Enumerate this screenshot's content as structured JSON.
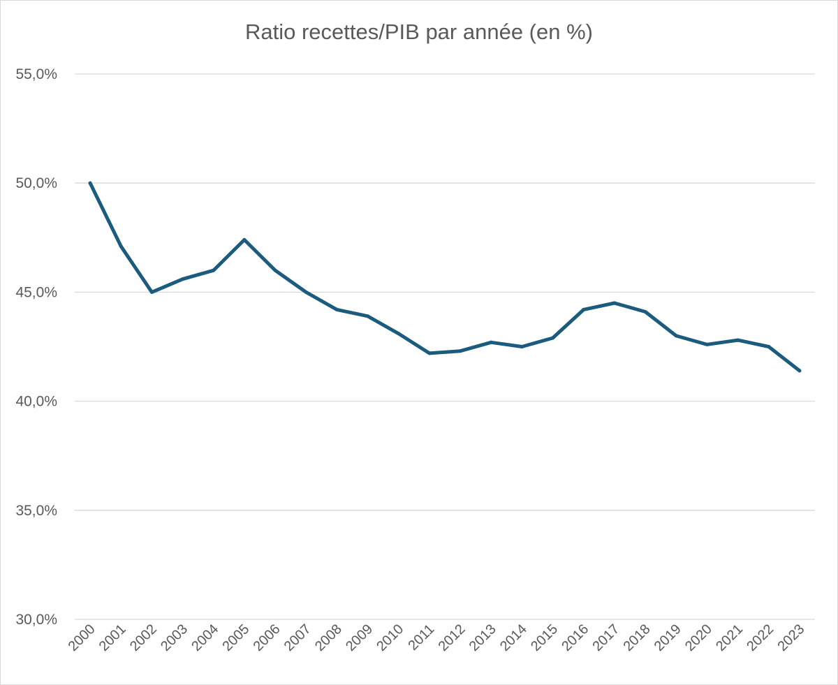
{
  "chart_data": {
    "type": "line",
    "title": "Ratio recettes/PIB par année (en %)",
    "xlabel": "",
    "ylabel": "",
    "categories": [
      "2000",
      "2001",
      "2002",
      "2003",
      "2004",
      "2005",
      "2006",
      "2007",
      "2008",
      "2009",
      "2010",
      "2011",
      "2012",
      "2013",
      "2014",
      "2015",
      "2016",
      "2017",
      "2018",
      "2019",
      "2020",
      "2021",
      "2022",
      "2023"
    ],
    "series": [
      {
        "values": [
          50.0,
          47.1,
          45.0,
          45.6,
          46.0,
          47.4,
          46.0,
          45.0,
          44.2,
          43.9,
          43.1,
          42.2,
          42.3,
          42.7,
          42.5,
          42.9,
          44.2,
          44.5,
          44.1,
          43.0,
          42.6,
          42.8,
          42.5,
          41.4
        ],
        "color": "#1b5b7e"
      }
    ],
    "ylim": [
      30,
      55
    ],
    "yticks": [
      30,
      35,
      40,
      45,
      50,
      55
    ],
    "ytick_labels": [
      "30,0%",
      "35,0%",
      "40,0%",
      "45,0%",
      "50,0%",
      "55,0%"
    ],
    "grid": true,
    "legend": "none",
    "colors": {
      "grid": "#d9d9d9",
      "text": "#595959",
      "line": "#1b5b7e"
    }
  }
}
